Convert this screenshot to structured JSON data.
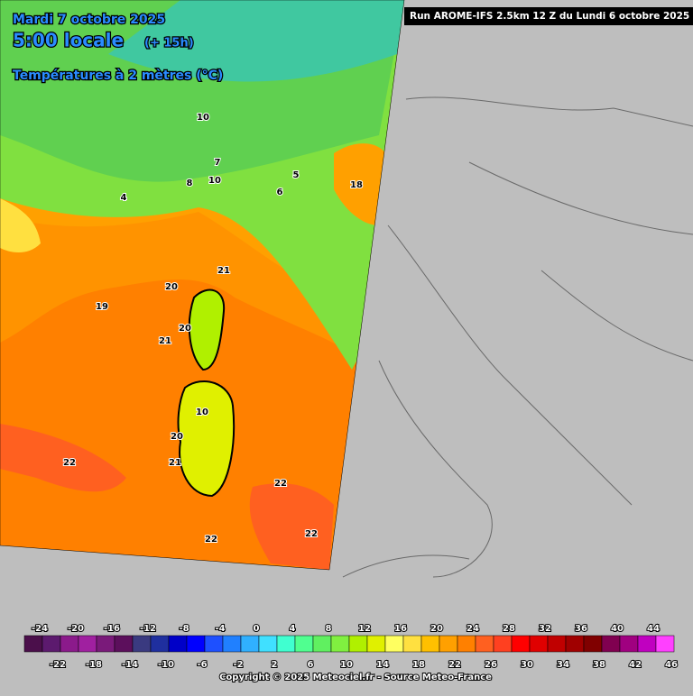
{
  "header": {
    "date": "Mardi 7 octobre 2025",
    "time": "5:00 locale",
    "lead": "(+ 15h)",
    "field": "Températures à 2 mètres (°C)",
    "run": "Run AROME-IFS 2.5km 12 Z du Lundi 6 octobre 2025"
  },
  "map_labels": [
    21,
    20,
    19,
    21,
    20,
    22,
    22,
    22,
    22,
    10,
    20,
    21,
    18,
    8,
    10,
    10,
    5,
    7,
    6,
    4
  ],
  "legend": {
    "values": [
      -24,
      -22,
      -20,
      -18,
      -16,
      -14,
      -12,
      -10,
      -8,
      -6,
      -4,
      -2,
      0,
      2,
      4,
      6,
      8,
      10,
      12,
      14,
      16,
      18,
      20,
      22,
      24,
      26,
      28,
      30,
      32,
      34,
      36,
      38,
      40,
      42,
      44,
      46
    ],
    "colors": [
      "#4b0f4b",
      "#5c1a6e",
      "#8b1a8b",
      "#a020a0",
      "#7a1a7a",
      "#5c0f5c",
      "#3a3a80",
      "#1f2f9f",
      "#0000c8",
      "#0000ff",
      "#1e50ff",
      "#2080ff",
      "#30b0ff",
      "#40e0ff",
      "#40ffd0",
      "#50ff90",
      "#60f060",
      "#80f040",
      "#b0f000",
      "#e0f000",
      "#ffff60",
      "#ffe040",
      "#ffc000",
      "#ffa000",
      "#ff8000",
      "#ff6020",
      "#ff4020",
      "#ff0000",
      "#e00000",
      "#c00000",
      "#a00000",
      "#800000",
      "#800050",
      "#a00080",
      "#c000c0",
      "#ff40ff"
    ]
  },
  "footer": {
    "copyright": "Copyright © 2025 Meteociel.fr - Source Meteo-France"
  }
}
